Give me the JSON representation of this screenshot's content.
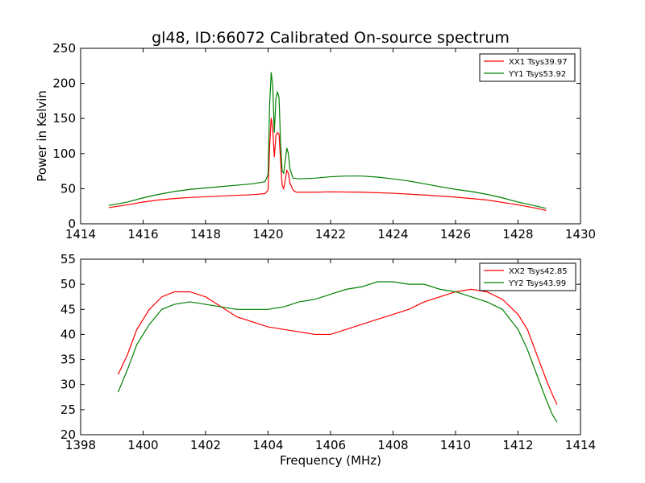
{
  "figure": {
    "title": "gl48, ID:66072 Calibrated On-source spectrum",
    "xlabel": "Frequency (MHz)",
    "ylabel": "Power in Kelvin"
  },
  "chart_data": [
    {
      "type": "line",
      "xlim": [
        1414,
        1430
      ],
      "ylim": [
        0,
        250
      ],
      "xticks": [
        1414,
        1416,
        1418,
        1420,
        1422,
        1424,
        1426,
        1428,
        1430
      ],
      "yticks": [
        0,
        50,
        100,
        150,
        200,
        250
      ],
      "legend_position": "top-right",
      "grid": false,
      "series": [
        {
          "name": "XX1 Tsys39.97",
          "color": "#ff0000",
          "points": [
            [
              1414.9,
              23
            ],
            [
              1415.5,
              27
            ],
            [
              1416.0,
              31
            ],
            [
              1416.5,
              34
            ],
            [
              1417.0,
              36
            ],
            [
              1417.5,
              37.5
            ],
            [
              1418.0,
              38.5
            ],
            [
              1418.5,
              39.5
            ],
            [
              1419.0,
              40.5
            ],
            [
              1419.5,
              41.5
            ],
            [
              1419.9,
              43
            ],
            [
              1420.0,
              48
            ],
            [
              1420.05,
              110
            ],
            [
              1420.1,
              151
            ],
            [
              1420.15,
              135
            ],
            [
              1420.2,
              95
            ],
            [
              1420.25,
              125
            ],
            [
              1420.3,
              130
            ],
            [
              1420.35,
              128
            ],
            [
              1420.4,
              90
            ],
            [
              1420.45,
              55
            ],
            [
              1420.5,
              50
            ],
            [
              1420.55,
              62
            ],
            [
              1420.6,
              76
            ],
            [
              1420.65,
              72
            ],
            [
              1420.7,
              58
            ],
            [
              1420.8,
              48
            ],
            [
              1420.9,
              45
            ],
            [
              1421.5,
              45
            ],
            [
              1422.0,
              45.5
            ],
            [
              1423.0,
              45
            ],
            [
              1424.0,
              43.5
            ],
            [
              1425.0,
              41
            ],
            [
              1426.0,
              38
            ],
            [
              1427.0,
              34
            ],
            [
              1428.0,
              27
            ],
            [
              1428.6,
              22
            ],
            [
              1428.9,
              19
            ]
          ]
        },
        {
          "name": "YY1 Tsys53.92",
          "color": "#008000",
          "points": [
            [
              1414.9,
              26
            ],
            [
              1415.5,
              31
            ],
            [
              1416.0,
              37
            ],
            [
              1416.5,
              42
            ],
            [
              1417.0,
              46
            ],
            [
              1417.5,
              49
            ],
            [
              1418.0,
              51
            ],
            [
              1418.5,
              53
            ],
            [
              1419.0,
              55
            ],
            [
              1419.5,
              57
            ],
            [
              1419.9,
              60
            ],
            [
              1420.0,
              70
            ],
            [
              1420.05,
              170
            ],
            [
              1420.1,
              216
            ],
            [
              1420.15,
              195
            ],
            [
              1420.2,
              130
            ],
            [
              1420.25,
              178
            ],
            [
              1420.3,
              188
            ],
            [
              1420.35,
              180
            ],
            [
              1420.4,
              115
            ],
            [
              1420.45,
              75
            ],
            [
              1420.5,
              72
            ],
            [
              1420.55,
              90
            ],
            [
              1420.6,
              108
            ],
            [
              1420.65,
              100
            ],
            [
              1420.7,
              78
            ],
            [
              1420.8,
              65
            ],
            [
              1421.0,
              64
            ],
            [
              1421.5,
              65
            ],
            [
              1422.0,
              67
            ],
            [
              1422.5,
              68
            ],
            [
              1423.0,
              68
            ],
            [
              1423.5,
              66.5
            ],
            [
              1424.0,
              64
            ],
            [
              1424.5,
              61
            ],
            [
              1425.0,
              57
            ],
            [
              1425.5,
              53
            ],
            [
              1426.0,
              49
            ],
            [
              1426.5,
              46
            ],
            [
              1427.0,
              42
            ],
            [
              1427.5,
              37
            ],
            [
              1428.0,
              31
            ],
            [
              1428.5,
              26
            ],
            [
              1428.9,
              22
            ]
          ]
        }
      ]
    },
    {
      "type": "line",
      "xlim": [
        1398,
        1414
      ],
      "ylim": [
        20,
        55
      ],
      "xticks": [
        1398,
        1400,
        1402,
        1404,
        1406,
        1408,
        1410,
        1412,
        1414
      ],
      "yticks": [
        20,
        25,
        30,
        35,
        40,
        45,
        50,
        55
      ],
      "legend_position": "top-right",
      "grid": false,
      "series": [
        {
          "name": "XX2 Tsys42.85",
          "color": "#ff0000",
          "points": [
            [
              1399.2,
              32
            ],
            [
              1399.5,
              36
            ],
            [
              1399.8,
              41
            ],
            [
              1400.2,
              45
            ],
            [
              1400.6,
              47.5
            ],
            [
              1401.0,
              48.5
            ],
            [
              1401.5,
              48.5
            ],
            [
              1402.0,
              47.5
            ],
            [
              1402.5,
              45.5
            ],
            [
              1403.0,
              43.5
            ],
            [
              1403.5,
              42.5
            ],
            [
              1404.0,
              41.5
            ],
            [
              1404.5,
              41
            ],
            [
              1405.0,
              40.5
            ],
            [
              1405.5,
              40
            ],
            [
              1406.0,
              40
            ],
            [
              1406.5,
              41
            ],
            [
              1407.0,
              42
            ],
            [
              1407.5,
              43
            ],
            [
              1408.0,
              44
            ],
            [
              1408.5,
              45
            ],
            [
              1409.0,
              46.5
            ],
            [
              1409.5,
              47.5
            ],
            [
              1410.0,
              48.5
            ],
            [
              1410.5,
              49
            ],
            [
              1411.0,
              48.5
            ],
            [
              1411.5,
              47
            ],
            [
              1412.0,
              44
            ],
            [
              1412.3,
              41
            ],
            [
              1412.6,
              36
            ],
            [
              1412.9,
              31
            ],
            [
              1413.1,
              28
            ],
            [
              1413.25,
              26
            ]
          ]
        },
        {
          "name": "YY2 Tsys43.99",
          "color": "#008000",
          "points": [
            [
              1399.2,
              28.5
            ],
            [
              1399.5,
              33
            ],
            [
              1399.8,
              38
            ],
            [
              1400.2,
              42
            ],
            [
              1400.6,
              45
            ],
            [
              1401.0,
              46
            ],
            [
              1401.5,
              46.5
            ],
            [
              1402.0,
              46
            ],
            [
              1402.5,
              45.5
            ],
            [
              1403.0,
              45
            ],
            [
              1403.5,
              45
            ],
            [
              1404.0,
              45
            ],
            [
              1404.5,
              45.5
            ],
            [
              1405.0,
              46.5
            ],
            [
              1405.5,
              47
            ],
            [
              1406.0,
              48
            ],
            [
              1406.5,
              49
            ],
            [
              1407.0,
              49.5
            ],
            [
              1407.5,
              50.5
            ],
            [
              1408.0,
              50.5
            ],
            [
              1408.5,
              50
            ],
            [
              1409.0,
              50
            ],
            [
              1409.5,
              49
            ],
            [
              1410.0,
              48.5
            ],
            [
              1410.5,
              47.5
            ],
            [
              1411.0,
              46.5
            ],
            [
              1411.5,
              45
            ],
            [
              1412.0,
              41
            ],
            [
              1412.3,
              37
            ],
            [
              1412.6,
              32
            ],
            [
              1412.9,
              27
            ],
            [
              1413.1,
              24
            ],
            [
              1413.25,
              22.5
            ]
          ]
        }
      ]
    }
  ]
}
